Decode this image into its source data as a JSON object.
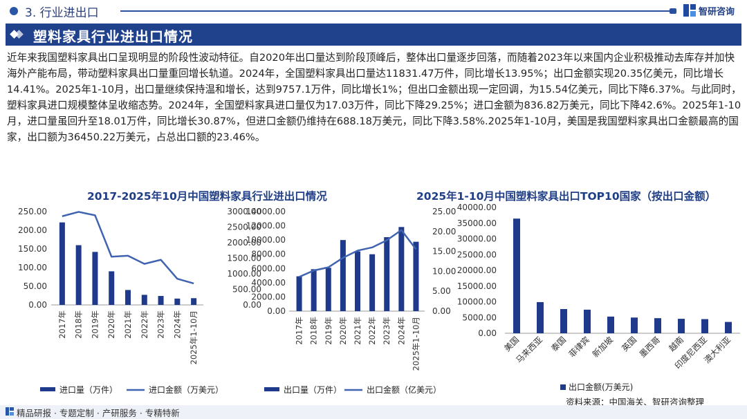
{
  "header": {
    "section_title": "3. 行业进出口",
    "brand": "智研咨询"
  },
  "banner": {
    "title": "塑料家具行业进出口情况"
  },
  "intro_text": "近年来我国塑料家具出口呈现明显的阶段性波动特征。自2020年出口量达到阶段顶峰后，整体出口量逐步回落，而随着2023年以来国内企业积极推动去库存并加快海外产能布局，带动塑料家具出口量重回增长轨道。2024年，全国塑料家具出口量达11831.47万件，同比增长13.95%；出口金额实现20.35亿美元，同比增长14.41%。2025年1-10月，出口量继续保持温和增长，达到9757.1万件，同比增长1%；但出口金额出现一定回调，为15.54亿美元，同比下降6.37%。与此同时，塑料家具进口规模整体呈收缩态势。2024年，全国塑料家具进口量仅为17.03万件，同比下降29.25%；进口金额为836.82万美元，同比下降42.6%。2025年1-10月，进口量虽回升至18.01万件，同比增长30.87%，但进口金额仍维持在688.18万美元，同比下降3.58%.2025年1-10月，美国是我国塑料家具出口金额最高的国家，出口额为36450.22万美元，占总出口额的23.46%。",
  "footer": {
    "text": "精品研报 · 专题定制 · 产研服务 · 专精特新"
  },
  "source": "资料来源：中国海关、智研咨询整理",
  "colors": {
    "bar": "#1f3a8a",
    "line": "#3f63b0",
    "title": "#1f3e86",
    "banner": "#20418c"
  },
  "chart_data": [
    {
      "type": "bar+line",
      "title": "2017-2025年10月中国塑料家具行业进出口情况",
      "categories": [
        "2017年",
        "2018年",
        "2019年",
        "2020年",
        "2021年",
        "2022年",
        "2023年",
        "2024年",
        "2025年1-10月"
      ],
      "series": [
        {
          "name": "进口量（万件）",
          "type": "bar",
          "axis": "left",
          "values": [
            221,
            160,
            142,
            90,
            40,
            27,
            24,
            17,
            18
          ]
        },
        {
          "name": "进口金额（万美元）",
          "type": "line",
          "axis": "right",
          "values": [
            2850,
            2990,
            2880,
            1550,
            1580,
            1320,
            1450,
            840,
            690
          ]
        }
      ],
      "left_axis": {
        "ticks": [
          "0.00",
          "50.00",
          "100.00",
          "150.00",
          "200.00",
          "250.00"
        ],
        "range": [
          0,
          250
        ]
      },
      "right_axis": {
        "ticks": [
          "0.00",
          "500.00",
          "1000.00",
          "1500.00",
          "2000.00",
          "2500.00",
          "3000.00"
        ],
        "range": [
          0,
          3000
        ]
      }
    },
    {
      "type": "bar+line",
      "categories": [
        "2017年",
        "2018年",
        "2019年",
        "2020年",
        "2021年",
        "2022年",
        "2023年",
        "2024年",
        "2025年1-10月"
      ],
      "series": [
        {
          "name": "出口量（万件）",
          "type": "bar",
          "axis": "left",
          "values": [
            4900,
            5900,
            6100,
            10000,
            8400,
            8000,
            10400,
            11831.47,
            9757.1
          ]
        },
        {
          "name": "出口金额（亿美元）",
          "type": "line",
          "axis": "right",
          "values": [
            8.6,
            10.2,
            11.0,
            13.4,
            15.2,
            16.0,
            17.8,
            20.35,
            15.54
          ]
        }
      ],
      "left_axis": {
        "ticks": [
          "0.00",
          "2000.00",
          "4000.00",
          "6000.00",
          "8000.00",
          "10000.00",
          "12000.00",
          "14000.00"
        ],
        "range": [
          0,
          14000
        ]
      },
      "right_axis": {
        "ticks": [
          "0.00",
          "5.00",
          "10.00",
          "15.00",
          "20.00",
          "25.00"
        ],
        "range": [
          0,
          25
        ]
      }
    },
    {
      "type": "bar",
      "title": "2025年1-10月中国塑料家具出口TOP10国家（按出口金额）",
      "categories": [
        "美国",
        "马来西亚",
        "泰国",
        "菲律宾",
        "新加坡",
        "英国",
        "墨西哥",
        "越南",
        "印度尼西亚",
        "澳大利亚"
      ],
      "series": [
        {
          "name": "出口金额(万美元)",
          "values": [
            36450.22,
            9900,
            7700,
            7500,
            5300,
            5000,
            4800,
            4600,
            4500,
            3600
          ]
        }
      ],
      "y_axis": {
        "ticks": [
          "0.00",
          "5000.00",
          "10000.00",
          "15000.00",
          "20000.00",
          "25000.00",
          "30000.00",
          "35000.00",
          "40000.00"
        ],
        "range": [
          0,
          40000
        ]
      }
    }
  ]
}
